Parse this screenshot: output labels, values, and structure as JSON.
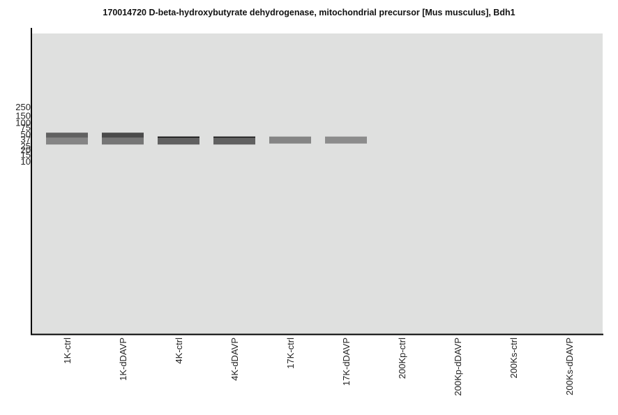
{
  "title": "170014720 D-beta-hydroxybutyrate dehydrogenase, mitochondrial precursor [Mus musculus], Bdh1",
  "colors": {
    "plot_background": "#dfe0df",
    "axis": "#000000",
    "text": "#111111"
  },
  "chart_data": {
    "type": "gel-blot",
    "title": "170014720 D-beta-hydroxybutyrate dehydrogenase, mitochondrial precursor [Mus musculus], Bdh1",
    "xlabel": "",
    "ylabel": "",
    "y_scale": "log",
    "y_ticks": [
      "250",
      "150",
      "100",
      "75",
      "50",
      "37",
      "25",
      "20",
      "15",
      "10"
    ],
    "lanes": [
      "1K-ctrl",
      "1K-dDAVP",
      "4K-ctrl",
      "4K-dDAVP",
      "17K-ctrl",
      "17K-dDAVP",
      "200Kp-ctrl",
      "200Kp-dDAVP",
      "200Ks-ctrl",
      "200Ks-dDAVP"
    ],
    "bands": [
      {
        "lane": "1K-ctrl",
        "kda": 44,
        "intensity": 0.55
      },
      {
        "lane": "1K-ctrl",
        "kda": 33,
        "intensity": 0.38
      },
      {
        "lane": "1K-dDAVP",
        "kda": 44,
        "intensity": 0.65
      },
      {
        "lane": "1K-dDAVP",
        "kda": 33,
        "intensity": 0.45
      },
      {
        "lane": "4K-ctrl",
        "kda": 35,
        "intensity": 1.0
      },
      {
        "lane": "4K-ctrl",
        "kda": 33,
        "intensity": 0.55
      },
      {
        "lane": "4K-dDAVP",
        "kda": 35,
        "intensity": 0.95
      },
      {
        "lane": "4K-dDAVP",
        "kda": 33,
        "intensity": 0.55
      },
      {
        "lane": "17K-ctrl",
        "kda": 35,
        "intensity": 0.38
      },
      {
        "lane": "17K-dDAVP",
        "kda": 35,
        "intensity": 0.35
      }
    ]
  }
}
